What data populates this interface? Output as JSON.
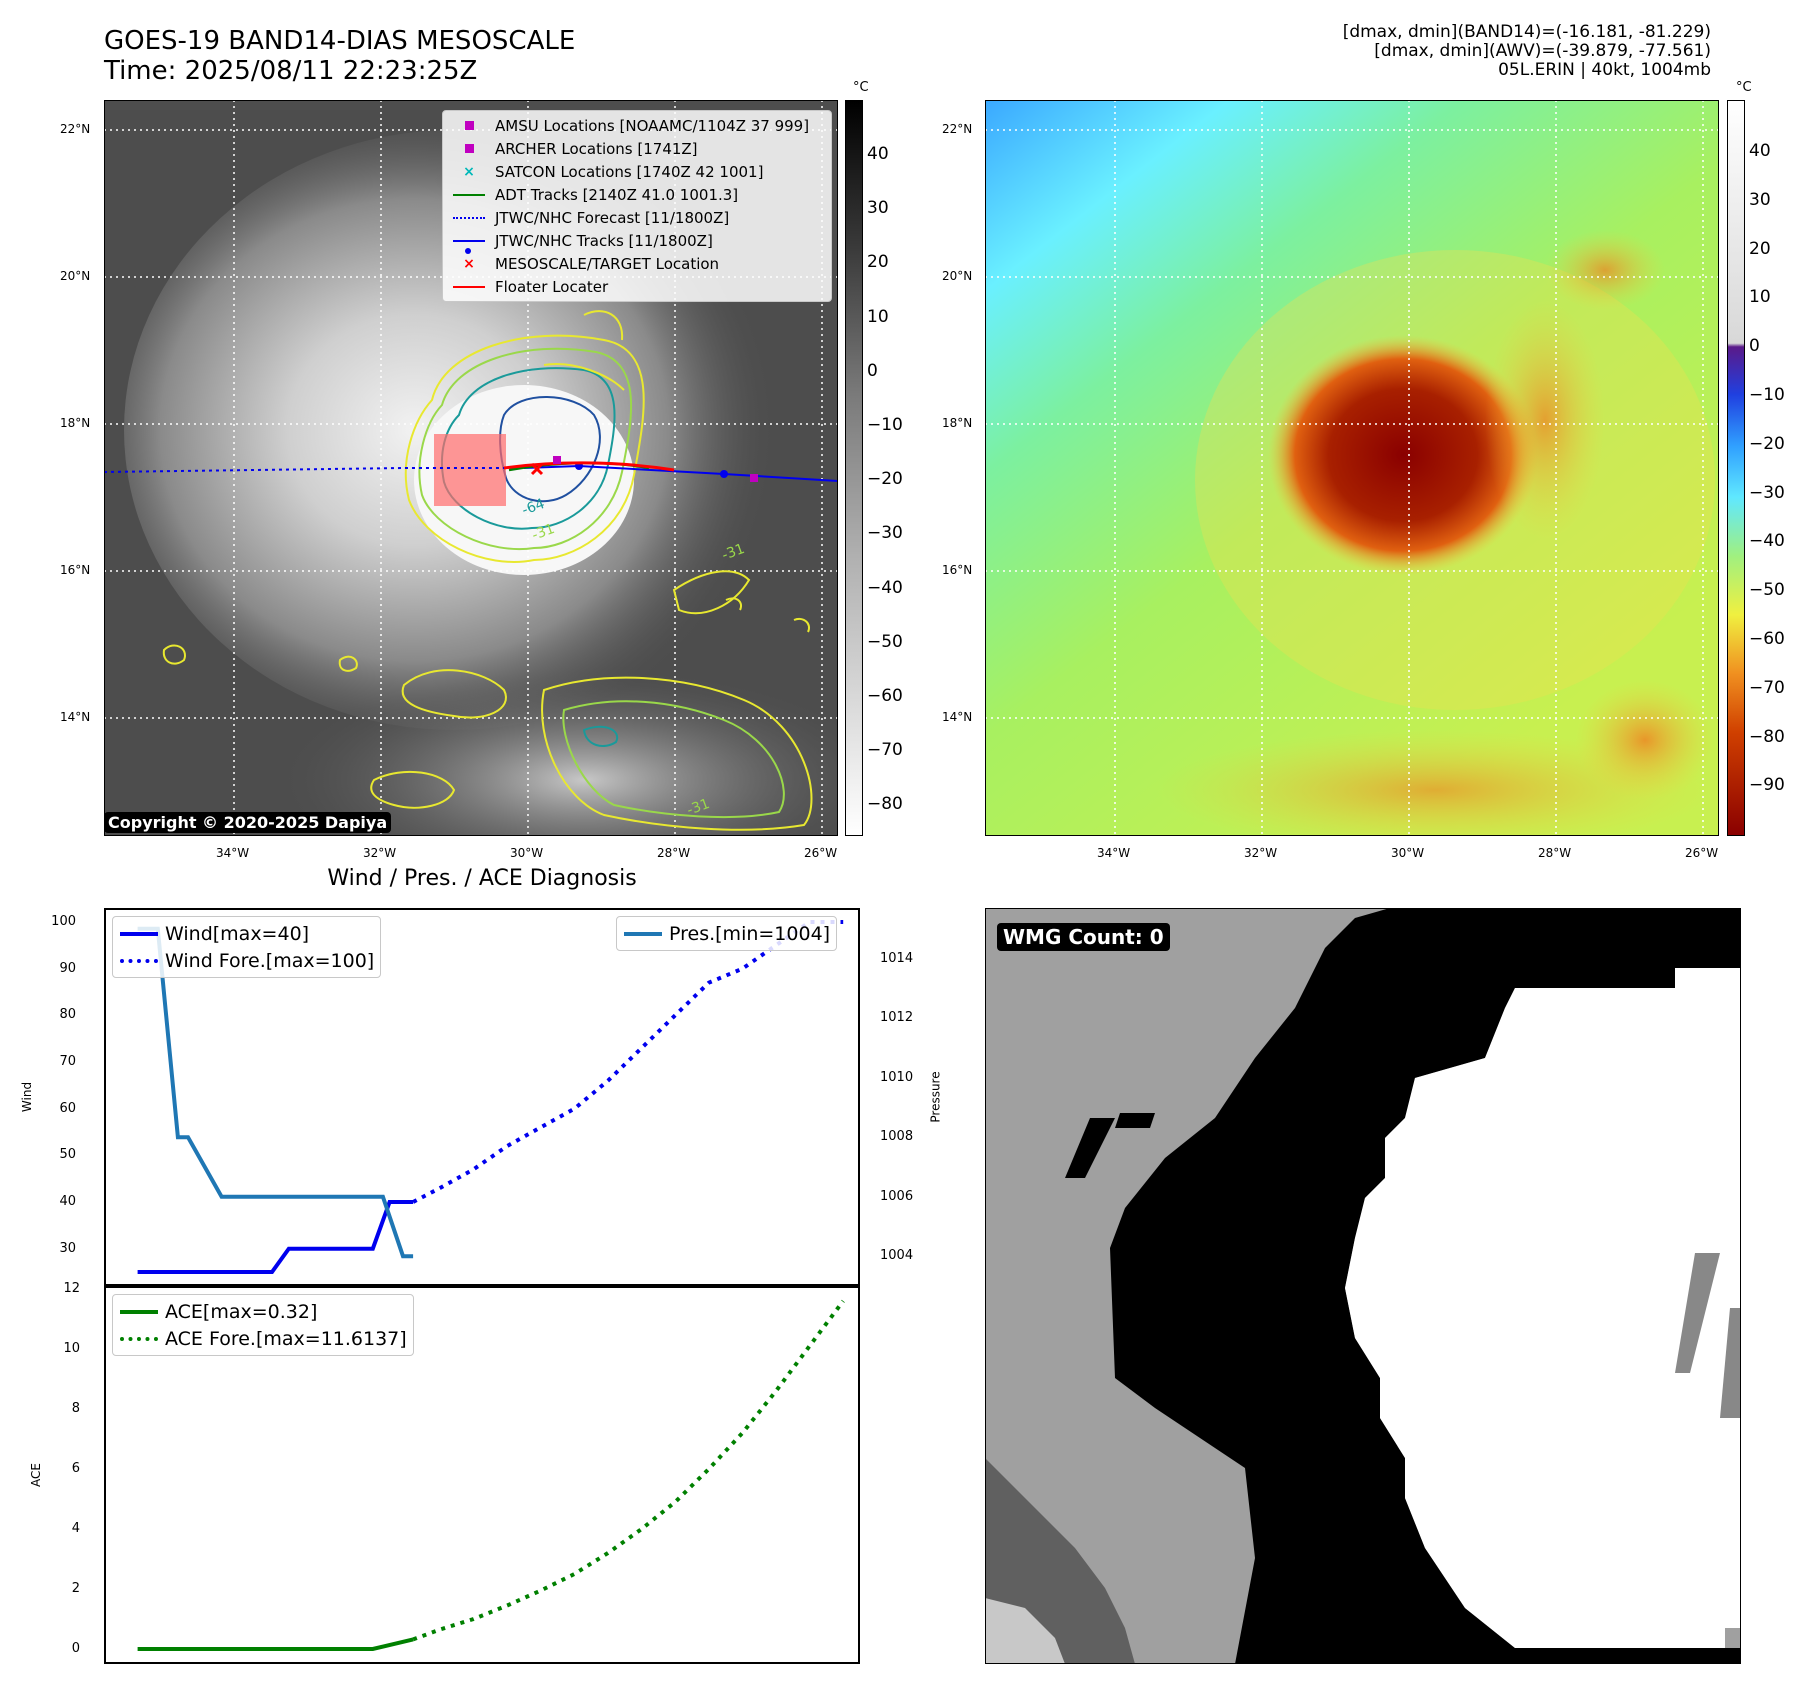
{
  "header": {
    "title_line1": "GOES-19 BAND14-DIAS MESOSCALE",
    "title_line2": "Time: 2025/08/11 22:23:25Z",
    "info_line1": "[dmax, dmin](BAND14)=(-16.181, -81.229)",
    "info_line2": "[dmax, dmin](AWV)=(-39.879, -77.561)",
    "info_line3": "05L.ERIN | 40kt, 1004mb"
  },
  "map": {
    "lat_labels": [
      "22°N",
      "20°N",
      "18°N",
      "16°N",
      "14°N"
    ],
    "lon_labels": [
      "34°W",
      "32°W",
      "30°W",
      "28°W",
      "26°W"
    ],
    "copyright": "Copyright © 2020-2025 Dapiya",
    "contour_labels": [
      "-64",
      "-31",
      "-31",
      "-31"
    ],
    "legend": [
      {
        "label": "AMSU Locations [NOAAMC/1104Z 37 999]",
        "color": "#c000c0",
        "symbol": "square"
      },
      {
        "label": "ARCHER Locations [1741Z]",
        "color": "#c000c0",
        "symbol": "square"
      },
      {
        "label": "SATCON Locations [1740Z 42 1001]",
        "color": "#00b8b8",
        "symbol": "x"
      },
      {
        "label": "ADT Tracks [2140Z 41.0 1001.3]",
        "color": "#008000",
        "symbol": "line"
      },
      {
        "label": "JTWC/NHC Forecast [11/1800Z]",
        "color": "#0000ff",
        "symbol": "dotted"
      },
      {
        "label": "JTWC/NHC Tracks [11/1800Z]",
        "color": "#0000ff",
        "symbol": "line-dot"
      },
      {
        "label": "MESOSCALE/TARGET Location",
        "color": "#ff0000",
        "symbol": "x"
      },
      {
        "label": "Floater Locater",
        "color": "#ff0000",
        "symbol": "line"
      }
    ]
  },
  "colorbar_ir": {
    "unit": "°C",
    "ticks": [
      "40",
      "30",
      "20",
      "10",
      "0",
      "−10",
      "−20",
      "−30",
      "−40",
      "−50",
      "−60",
      "−70",
      "−80"
    ]
  },
  "colorbar_awv": {
    "unit": "°C",
    "ticks": [
      "40",
      "30",
      "20",
      "10",
      "0",
      "−10",
      "−20",
      "−30",
      "−40",
      "−50",
      "−60",
      "−70",
      "−80",
      "−90"
    ]
  },
  "wmg": {
    "label": "WMG Count: 0"
  },
  "chart_data": [
    {
      "type": "line",
      "title": "Wind / Pres. / ACE Diagnosis",
      "ylabel": "Wind",
      "ylabel_right": "Pressure",
      "ylim": [
        22,
        103
      ],
      "ylim_right": [
        1003,
        1015.7
      ],
      "yticks": [
        30,
        40,
        50,
        60,
        70,
        80,
        90,
        100
      ],
      "yticks_right": [
        1004,
        1006,
        1008,
        1010,
        1012,
        1014
      ],
      "xlim": [
        0,
        22.5
      ],
      "series": [
        {
          "name": "Wind[max=40]",
          "color": "#0000ee",
          "style": "solid",
          "axis": "left",
          "x": [
            1,
            2,
            3,
            4,
            5,
            5.5,
            6,
            7,
            8,
            8.5,
            9,
            9.2
          ],
          "y": [
            25,
            25,
            25,
            25,
            25,
            30,
            30,
            30,
            30,
            40,
            40,
            40
          ]
        },
        {
          "name": "Wind Fore.[max=100]",
          "color": "#0000ee",
          "style": "dotted",
          "axis": "left",
          "x": [
            9.2,
            10,
            11,
            12,
            13,
            14,
            15,
            16,
            17,
            18,
            19,
            20,
            21,
            22
          ],
          "y": [
            40,
            43,
            47,
            52,
            56,
            60,
            66,
            73,
            80,
            87,
            90,
            95,
            100,
            100
          ]
        },
        {
          "name": "Pres.[min=1004]",
          "color": "#1f77b4",
          "style": "solid",
          "axis": "right",
          "x": [
            1,
            1.6,
            2.2,
            2.5,
            3.5,
            4.5,
            6,
            7,
            8,
            8.3,
            8.9,
            9.2
          ],
          "y": [
            1015,
            1015,
            1008,
            1008,
            1006,
            1006,
            1006,
            1006,
            1006,
            1006,
            1004,
            1004
          ]
        }
      ]
    },
    {
      "type": "line",
      "ylabel": "ACE",
      "ylim": [
        -0.5,
        12.1
      ],
      "yticks": [
        0,
        2,
        4,
        6,
        8,
        10,
        12
      ],
      "xlim": [
        0,
        22.5
      ],
      "series": [
        {
          "name": "ACE[max=0.32]",
          "color": "#008000",
          "style": "solid",
          "x": [
            1,
            3,
            5,
            7,
            8,
            9.2
          ],
          "y": [
            0,
            0,
            0,
            0,
            0,
            0.32
          ]
        },
        {
          "name": "ACE Fore.[max=11.6137]",
          "color": "#008000",
          "style": "dotted",
          "x": [
            9.2,
            10,
            11,
            12,
            13,
            14,
            15,
            16,
            17,
            18,
            19,
            20,
            21,
            22
          ],
          "y": [
            0.32,
            0.65,
            1.0,
            1.45,
            1.95,
            2.5,
            3.2,
            4.0,
            4.9,
            6.0,
            7.2,
            8.6,
            10.1,
            11.6
          ]
        }
      ]
    }
  ]
}
